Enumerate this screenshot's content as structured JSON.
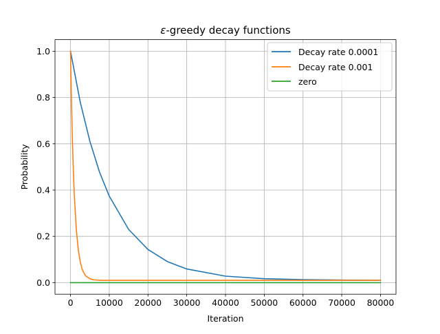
{
  "chart_data": {
    "type": "line",
    "title_prefix": "ε",
    "title_suffix": "-greedy decay functions",
    "xlabel": "Iteration",
    "ylabel": "Probability",
    "xlim": [
      -4000,
      84000
    ],
    "ylim": [
      -0.05,
      1.05
    ],
    "grid": true,
    "legend_position": "upper right",
    "xticks": [
      0,
      10000,
      20000,
      30000,
      40000,
      50000,
      60000,
      70000,
      80000
    ],
    "xtick_labels": [
      "0",
      "10000",
      "20000",
      "30000",
      "40000",
      "50000",
      "60000",
      "70000",
      "80000"
    ],
    "yticks": [
      0.0,
      0.2,
      0.4,
      0.6,
      0.8,
      1.0
    ],
    "ytick_labels": [
      "0.0",
      "0.2",
      "0.4",
      "0.6",
      "0.8",
      "1.0"
    ],
    "series": [
      {
        "name": "Decay rate 0.0001",
        "color": "#1f77b4",
        "x": [
          0,
          2500,
          5000,
          7500,
          10000,
          15000,
          20000,
          25000,
          30000,
          40000,
          50000,
          60000,
          70000,
          80000
        ],
        "y": [
          1.0,
          0.781,
          0.611,
          0.477,
          0.374,
          0.23,
          0.143,
          0.091,
          0.059,
          0.028,
          0.017,
          0.013,
          0.011,
          0.01
        ]
      },
      {
        "name": "Decay rate 0.001",
        "color": "#ff7f0e",
        "x": [
          0,
          250,
          500,
          750,
          1000,
          1500,
          2000,
          2500,
          3000,
          3500,
          4000,
          5000,
          6000,
          8000,
          10000,
          20000,
          40000,
          60000,
          80000
        ],
        "y": [
          1.0,
          0.781,
          0.611,
          0.477,
          0.374,
          0.23,
          0.144,
          0.091,
          0.059,
          0.04,
          0.028,
          0.017,
          0.012,
          0.01,
          0.01,
          0.01,
          0.01,
          0.01,
          0.01
        ]
      },
      {
        "name": "zero",
        "color": "#2ca02c",
        "x": [
          0,
          80000
        ],
        "y": [
          0.0,
          0.0
        ]
      }
    ]
  }
}
